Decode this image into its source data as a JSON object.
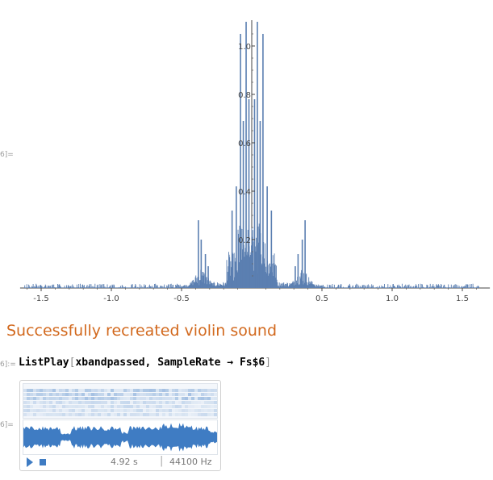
{
  "cell_labels": {
    "plot_output": "6]=",
    "listplay_input": "6]:=",
    "listplay_output": "6]="
  },
  "chart_data": {
    "type": "line",
    "xlabel": "",
    "ylabel": "",
    "xlim": [
      -1.65,
      1.65
    ],
    "ylim": [
      0,
      1.1
    ],
    "x_ticks": [
      -1.5,
      -1.0,
      -0.5,
      0.5,
      1.0,
      1.5
    ],
    "x_tick_labels": [
      "-1.5",
      "-1.0",
      "-0.5",
      "0.5",
      "1.0",
      "1.5"
    ],
    "y_ticks": [
      0.2,
      0.4,
      0.6,
      0.8,
      1.0
    ],
    "y_tick_labels": [
      "0.2",
      "0.4",
      "0.6",
      "0.8",
      "1.0"
    ],
    "grid": false,
    "color": "#5b7fb1",
    "peaks": [
      {
        "x": -0.04,
        "y": 1.1
      },
      {
        "x": 0.04,
        "y": 1.1
      },
      {
        "x": -0.08,
        "y": 1.05
      },
      {
        "x": 0.08,
        "y": 1.05
      },
      {
        "x": -0.02,
        "y": 0.78
      },
      {
        "x": 0.02,
        "y": 0.78
      },
      {
        "x": -0.06,
        "y": 0.69
      },
      {
        "x": 0.06,
        "y": 0.69
      },
      {
        "x": -0.11,
        "y": 0.42
      },
      {
        "x": 0.11,
        "y": 0.42
      },
      {
        "x": -0.14,
        "y": 0.32
      },
      {
        "x": 0.14,
        "y": 0.32
      },
      {
        "x": -0.38,
        "y": 0.28
      },
      {
        "x": 0.38,
        "y": 0.28
      },
      {
        "x": -0.36,
        "y": 0.2
      },
      {
        "x": 0.36,
        "y": 0.2
      },
      {
        "x": -0.33,
        "y": 0.14
      },
      {
        "x": 0.33,
        "y": 0.14
      },
      {
        "x": -0.31,
        "y": 0.09
      },
      {
        "x": 0.31,
        "y": 0.09
      }
    ]
  },
  "section_title": "Successfully recreated violin sound",
  "code": {
    "func": "ListPlay",
    "open_bracket": "[",
    "args": "xbandpassed, SampleRate → Fs$6",
    "close_bracket": "]"
  },
  "audio": {
    "duration": "4.92 s",
    "separator": "|",
    "sample_rate": "44100 Hz",
    "accent": "#3f7cc3",
    "play_icon": "play-icon",
    "stop_icon": "stop-icon"
  }
}
